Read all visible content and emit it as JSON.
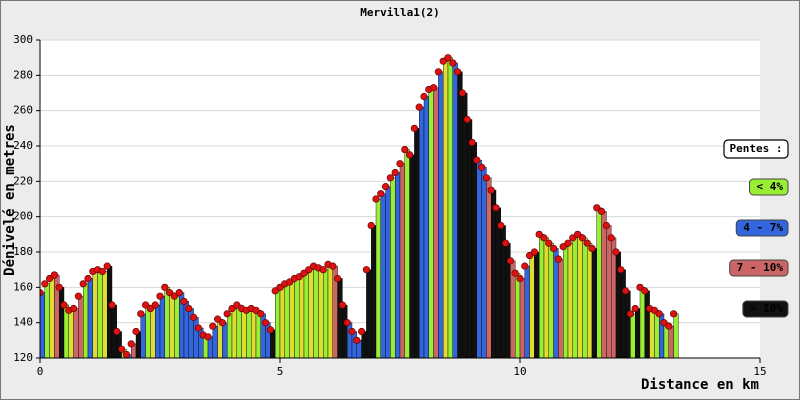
{
  "chart_data": {
    "type": "area",
    "title": "Mervilla1(2)",
    "x_label": "Distance en km",
    "y_label": "Dénivelé en metres",
    "legend_title": "Pentes :",
    "legend": [
      {
        "label": "< 4%",
        "color": "#99ee33",
        "text_color": "#ffffff"
      },
      {
        "label": "4 - 7%",
        "color": "#3366dd",
        "text_color": "#ffffff"
      },
      {
        "label": "7 - 10%",
        "color": "#cc6666",
        "text_color": "#ffffff"
      },
      {
        "label": "> 10%",
        "color": "#111111",
        "text_color": "#ffffff"
      }
    ],
    "xlim": [
      0,
      15
    ],
    "xticks": [
      0,
      5,
      10,
      15
    ],
    "ylim": [
      120,
      300
    ],
    "yticks": [
      120,
      140,
      160,
      180,
      200,
      220,
      240,
      260,
      280,
      300
    ],
    "grid": true,
    "marker_color": "#dd1111",
    "x": [
      0,
      0.1,
      0.2,
      0.3,
      0.4,
      0.5,
      0.6,
      0.7,
      0.8,
      0.9,
      1.0,
      1.1,
      1.2,
      1.3,
      1.4,
      1.5,
      1.6,
      1.7,
      1.8,
      1.9,
      2.0,
      2.1,
      2.2,
      2.3,
      2.4,
      2.5,
      2.6,
      2.7,
      2.8,
      2.9,
      3.0,
      3.1,
      3.2,
      3.3,
      3.4,
      3.5,
      3.6,
      3.7,
      3.8,
      3.9,
      4.0,
      4.1,
      4.2,
      4.3,
      4.4,
      4.5,
      4.6,
      4.7,
      4.8,
      4.9,
      5.0,
      5.1,
      5.2,
      5.3,
      5.4,
      5.5,
      5.6,
      5.7,
      5.8,
      5.9,
      6.0,
      6.1,
      6.2,
      6.3,
      6.4,
      6.5,
      6.6,
      6.7,
      6.8,
      6.9,
      7.0,
      7.1,
      7.2,
      7.3,
      7.4,
      7.5,
      7.6,
      7.7,
      7.8,
      7.9,
      8.0,
      8.1,
      8.2,
      8.3,
      8.4,
      8.5,
      8.6,
      8.7,
      8.8,
      8.9,
      9.0,
      9.1,
      9.2,
      9.3,
      9.4,
      9.5,
      9.6,
      9.7,
      9.8,
      9.9,
      10.0,
      10.1,
      10.2,
      10.3,
      10.4,
      10.5,
      10.6,
      10.7,
      10.8,
      10.9,
      11.0,
      11.1,
      11.2,
      11.3,
      11.4,
      11.5,
      11.6,
      11.7,
      11.8,
      11.9,
      12.0,
      12.1,
      12.2,
      12.3,
      12.4,
      12.5,
      12.6,
      12.7,
      12.8,
      12.9,
      13.0,
      13.1,
      13.2
    ],
    "values": [
      157,
      162,
      165,
      167,
      160,
      150,
      147,
      148,
      155,
      162,
      165,
      169,
      170,
      169,
      172,
      150,
      135,
      125,
      122,
      128,
      135,
      145,
      150,
      148,
      150,
      155,
      160,
      157,
      155,
      157,
      152,
      148,
      143,
      137,
      133,
      132,
      138,
      142,
      140,
      145,
      148,
      150,
      148,
      147,
      148,
      147,
      145,
      140,
      136,
      158,
      160,
      162,
      163,
      165,
      166,
      168,
      170,
      172,
      171,
      170,
      173,
      172,
      165,
      150,
      140,
      135,
      130,
      135,
      170,
      195,
      210,
      213,
      217,
      222,
      225,
      230,
      238,
      235,
      250,
      262,
      268,
      272,
      273,
      282,
      288,
      290,
      287,
      282,
      270,
      255,
      242,
      232,
      228,
      222,
      215,
      205,
      195,
      185,
      175,
      168,
      165,
      172,
      178,
      180,
      190,
      188,
      185,
      182,
      176,
      183,
      185,
      188,
      190,
      188,
      185,
      182,
      205,
      203,
      195,
      188,
      180,
      170,
      158,
      145,
      148,
      160,
      158,
      148,
      147,
      145,
      140,
      138,
      145
    ],
    "colors": [
      "#3366dd",
      "#99ee33",
      "#dddd33",
      "#cc6666",
      "#111111",
      "#99ee33",
      "#dddd33",
      "#cc6666",
      "#cc6666",
      "#99ee33",
      "#3366dd",
      "#dddd33",
      "#99ee33",
      "#dddd33",
      "#111111",
      "#111111",
      "#111111",
      "#99ee33",
      "#3366dd",
      "#cc6666",
      "#111111",
      "#3366dd",
      "#99ee33",
      "#dddd33",
      "#3366dd",
      "#3366dd",
      "#99ee33",
      "#dddd33",
      "#99ee33",
      "#3366dd",
      "#3366dd",
      "#3366dd",
      "#3366dd",
      "#3366dd",
      "#99ee33",
      "#3366dd",
      "#3366dd",
      "#dddd33",
      "#3366dd",
      "#99ee33",
      "#dddd33",
      "#99ee33",
      "#dddd33",
      "#99ee33",
      "#dddd33",
      "#99ee33",
      "#3366dd",
      "#3366dd",
      "#111111",
      "#99ee33",
      "#dddd33",
      "#99ee33",
      "#dddd33",
      "#99ee33",
      "#dddd33",
      "#99ee33",
      "#dddd33",
      "#99ee33",
      "#dddd33",
      "#99ee33",
      "#dddd33",
      "#cc6666",
      "#111111",
      "#111111",
      "#3366dd",
      "#3366dd",
      "#3366dd",
      "#111111",
      "#111111",
      "#111111",
      "#99ee33",
      "#3366dd",
      "#3366dd",
      "#99ee33",
      "#3366dd",
      "#cc6666",
      "#99ee33",
      "#111111",
      "#111111",
      "#3366dd",
      "#3366dd",
      "#99ee33",
      "#cc6666",
      "#3366dd",
      "#dddd33",
      "#99ee33",
      "#3366dd",
      "#111111",
      "#111111",
      "#111111",
      "#111111",
      "#3366dd",
      "#3366dd",
      "#cc6666",
      "#111111",
      "#111111",
      "#111111",
      "#111111",
      "#cc6666",
      "#99ee33",
      "#cc6666",
      "#3366dd",
      "#dddd33",
      "#111111",
      "#99ee33",
      "#dddd33",
      "#99ee33",
      "#3366dd",
      "#cc6666",
      "#99ee33",
      "#dddd33",
      "#99ee33",
      "#dddd33",
      "#99ee33",
      "#dddd33",
      "#111111",
      "#99ee33",
      "#cc6666",
      "#cc6666",
      "#cc6666",
      "#111111",
      "#111111",
      "#111111",
      "#99ee33",
      "#111111",
      "#99ee33",
      "#111111",
      "#dddd33",
      "#99ee33",
      "#3366dd",
      "#99ee33",
      "#cc6666",
      "#99ee33"
    ]
  }
}
